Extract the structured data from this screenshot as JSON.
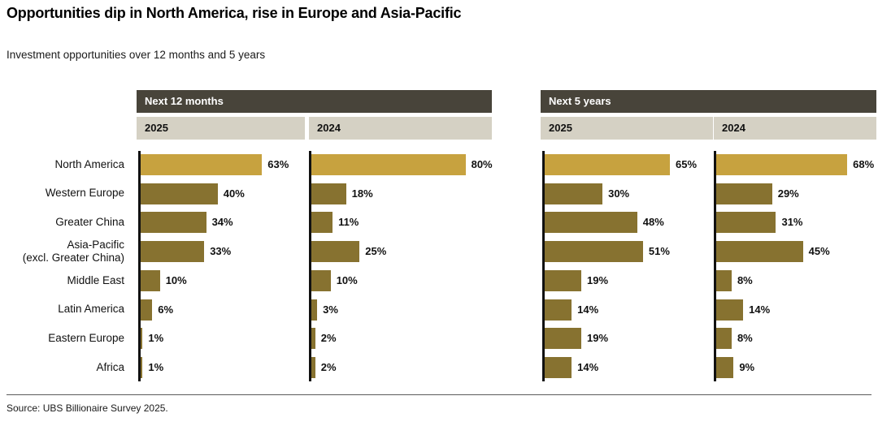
{
  "title": "Opportunities dip in North America, rise in Europe and Asia-Pacific",
  "subtitle": "Investment opportunities over 12 months and 5 years",
  "source": "Source: UBS Billionaire Survey 2025.",
  "colors": {
    "highlight_gold": "#C7A23F",
    "bar_olive": "#877230",
    "header_dark": "#48443A",
    "header_beige": "#D5D1C4",
    "text": "#111111"
  },
  "chart_data": {
    "type": "bar",
    "orientation": "horizontal",
    "value_suffix": "%",
    "xlim": [
      0,
      100
    ],
    "grid": false,
    "highlighted_category": "North America",
    "categories": [
      "North America",
      "Western Europe",
      "Greater China",
      "Asia-Pacific\n(excl. Greater China)",
      "Middle East",
      "Latin America",
      "Eastern Europe",
      "Africa"
    ],
    "groups": [
      {
        "label": "Next 12 months",
        "series": [
          {
            "name": "2025",
            "values": [
              63,
              40,
              34,
              33,
              10,
              6,
              1,
              1
            ]
          },
          {
            "name": "2024",
            "values": [
              80,
              18,
              11,
              25,
              10,
              3,
              2,
              2
            ]
          }
        ]
      },
      {
        "label": "Next 5 years",
        "series": [
          {
            "name": "2025",
            "values": [
              65,
              30,
              48,
              51,
              19,
              14,
              19,
              14
            ]
          },
          {
            "name": "2024",
            "values": [
              68,
              29,
              31,
              45,
              8,
              14,
              8,
              9
            ]
          }
        ]
      }
    ]
  }
}
